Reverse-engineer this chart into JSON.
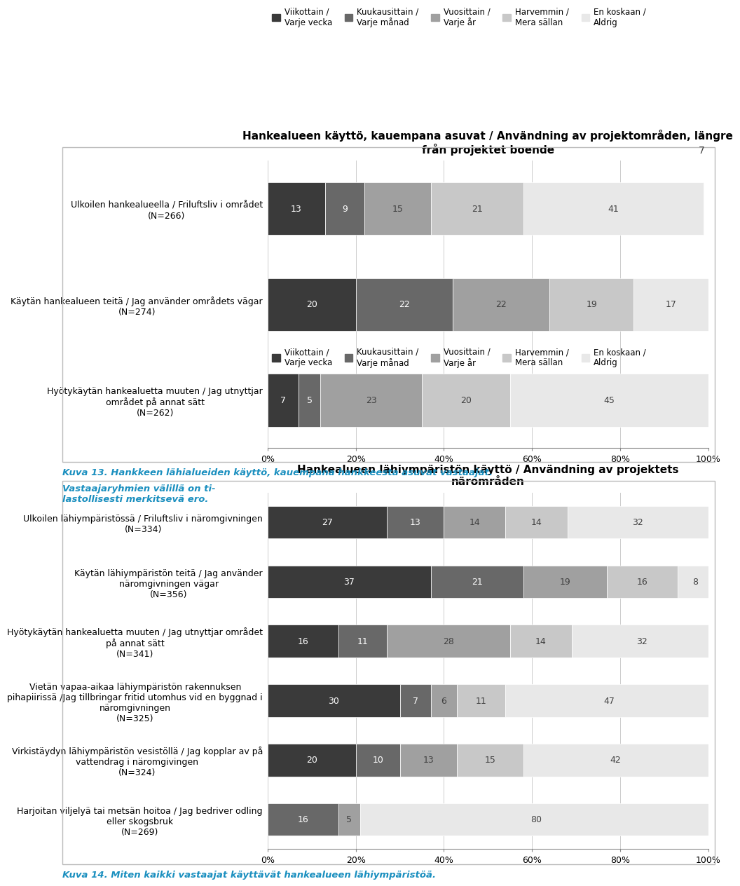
{
  "chart1": {
    "title": "Hankealueen käyttö, kauempana asuvat / Användning av projektområden, längre\nfrån projektet boende",
    "categories": [
      "Ulkoilen hankealueella / Friluftsliv i området\n(N=266)",
      "Käytän hankealueen teitä / Jag använder områdets vägar\n(N=274)",
      "Hyötykäytän hankealuetta muuten / Jag utnyttjar\nområdet på annat sätt\n(N=262)"
    ],
    "data": [
      [
        13,
        9,
        15,
        21,
        41
      ],
      [
        20,
        22,
        22,
        19,
        17
      ],
      [
        7,
        5,
        23,
        20,
        45
      ]
    ]
  },
  "chart2": {
    "title": "Hankealueen lähiympäristön käyttö / Användning av projektets\nnärområden",
    "categories": [
      "Ulkoilen lähiympäristössä / Friluftsliv i näromgivningen\n(N=334)",
      "Käytän lähiympäristön teitä / Jag använder\nnäromgivningen vägar\n(N=356)",
      "Hyötykäytän hankealuetta muuten / Jag utnyttjar området\npå annat sätt\n(N=341)",
      "Vietän vapaa-aikaa lähiympäristön rakennuksen\npihapiirissä /Jag tillbringar fritid utomhus vid en byggnad i\nnäromgivningen\n(N=325)",
      "Virkistäydyn lähiympäristön vesistöllä / Jag kopplar av på\nvattendrag i näromgivingen\n(N=324)",
      "Harjoitan viljelyä tai metsän hoitoa / Jag bedriver odling\neller skogsbruk\n(N=269)"
    ],
    "data": [
      [
        27,
        13,
        14,
        14,
        32
      ],
      [
        37,
        21,
        19,
        16,
        8
      ],
      [
        16,
        11,
        28,
        14,
        32
      ],
      [
        30,
        7,
        6,
        11,
        47
      ],
      [
        20,
        10,
        13,
        15,
        42
      ],
      [
        0,
        16,
        5,
        0,
        80
      ]
    ]
  },
  "legend_labels": [
    "Viikottain /\nVarje vecka",
    "Kuukausittain /\nVarje månad",
    "Vuosittain /\nVarje år",
    "Harvemmin /\nMera sällan",
    "En koskaan /\nAldrig"
  ],
  "colors": [
    "#3a3a3a",
    "#686868",
    "#a0a0a0",
    "#c8c8c8",
    "#e8e8e8"
  ],
  "caption1_bold": "Kuva 13. Hankkeen lähialueiden käyttö, kauempana hankkeesta asuvat vastaajat.",
  "caption1_normal": "  Vastaajaryhmien välillä on ti-\nlastollisesti merkitsevä ero.",
  "caption2": "Kuva 14. Miten kaikki vastaajat käyttävät hankealueen lähiympäristöä.",
  "page_number": "7",
  "bar_height": 0.55,
  "background_color": "#ffffff",
  "box_edge_color": "#bbbbbb",
  "tick_fontsize": 9,
  "label_fontsize": 9,
  "title_fontsize": 11,
  "legend_fontsize": 8.5,
  "caption_fontsize": 9.5,
  "caption_color": "#1a8fbf"
}
